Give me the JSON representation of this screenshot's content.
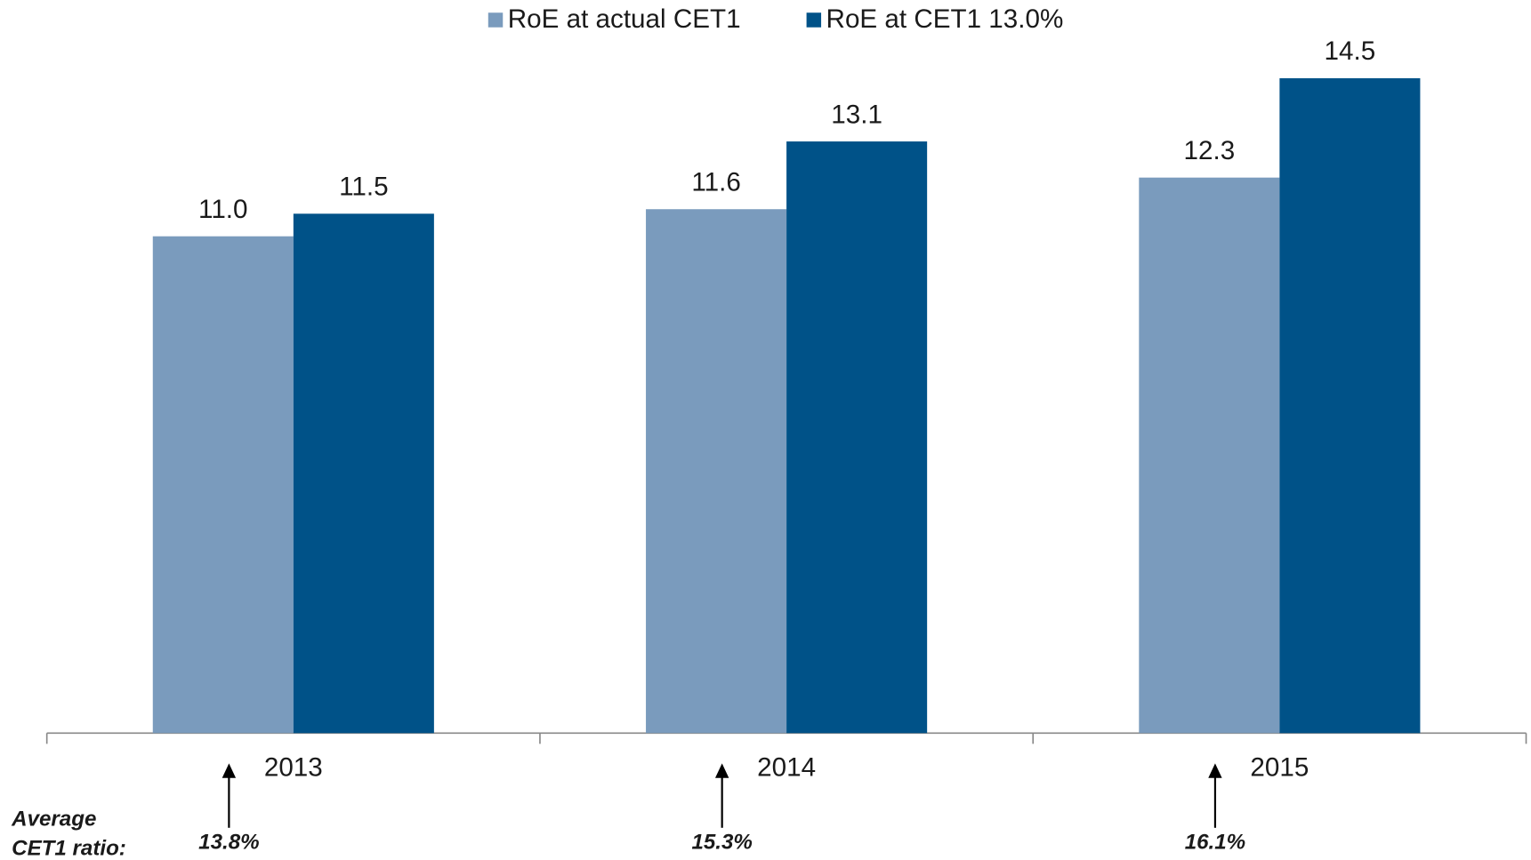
{
  "chart_data": {
    "type": "bar",
    "categories": [
      "2013",
      "2014",
      "2015"
    ],
    "series": [
      {
        "name": "RoE at actual CET1",
        "color": "#7a9bbd",
        "values": [
          11.0,
          11.6,
          12.3
        ],
        "value_labels": [
          "11.0",
          "11.6",
          "12.3"
        ]
      },
      {
        "name": "RoE at CET1 13.0%",
        "color": "#005288",
        "values": [
          11.5,
          13.1,
          14.5
        ],
        "value_labels": [
          "11.5",
          "13.1",
          "14.5"
        ]
      }
    ],
    "ylim": [
      0,
      15
    ],
    "annotations": {
      "label": [
        "Average",
        "CET1 ratio:"
      ],
      "values": [
        "13.8%",
        "15.3%",
        "16.1%"
      ]
    }
  }
}
